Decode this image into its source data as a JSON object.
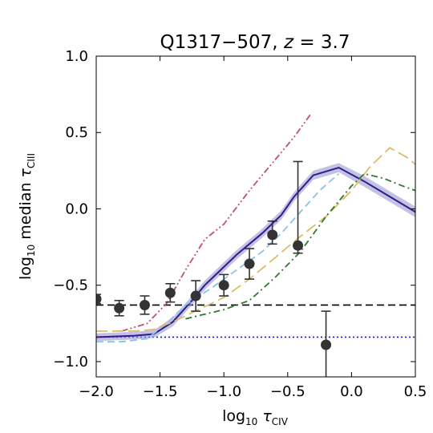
{
  "chart_data": {
    "type": "line",
    "title_main": "Q1317−507, ",
    "title_var": "z",
    "title_rest": " = 3.7",
    "xlabel": {
      "prefix": "log",
      "sub": "10",
      "sym": " τ",
      "ion": "CIV"
    },
    "ylabel": {
      "prefix": "log",
      "sub": "10",
      "mid": " median ",
      "sym": "τ",
      "ion": "CIII"
    },
    "xlim": [
      -2.0,
      0.5
    ],
    "ylim": [
      -1.1,
      1.0
    ],
    "xticks": [
      -2.0,
      -1.5,
      -1.0,
      -0.5,
      0.0,
      0.5
    ],
    "xtick_labels": [
      "−2.0",
      "−1.5",
      "−1.0",
      "−0.5",
      "0.0",
      "0.5"
    ],
    "yticks": [
      1.0,
      0.5,
      0.0,
      -0.5,
      -1.0
    ],
    "ytick_labels": [
      "1.0",
      "0.5",
      "0.0",
      "−0.5",
      "−1.0"
    ],
    "grid": false,
    "observed": {
      "x": [
        -2.0,
        -1.82,
        -1.62,
        -1.42,
        -1.22,
        -1.0,
        -0.8,
        -0.62,
        -0.42,
        -0.2
      ],
      "y": [
        -0.59,
        -0.65,
        -0.63,
        -0.55,
        -0.57,
        -0.5,
        -0.36,
        -0.17,
        -0.24,
        -0.89
      ],
      "yerr_low": [
        0.03,
        0.05,
        0.06,
        0.06,
        0.1,
        0.07,
        0.1,
        0.06,
        0.05,
        0.22
      ],
      "yerr_high": [
        0.03,
        0.05,
        0.06,
        0.06,
        0.1,
        0.07,
        0.1,
        0.09,
        0.55,
        0.22
      ],
      "color": "#333333"
    },
    "horizontal_lines": [
      {
        "y": -0.63,
        "style": "dashed",
        "color": "#000000"
      },
      {
        "y": -0.84,
        "style": "dotted",
        "color": "#1a1aa0"
      }
    ],
    "series": [
      {
        "style": "solid",
        "color": "#2b1e8f",
        "band_color": "#9c98cf",
        "x": [
          -2.0,
          -1.7,
          -1.55,
          -1.4,
          -1.25,
          -1.15,
          -1.05,
          -0.9,
          -0.7,
          -0.55,
          -0.45,
          -0.3,
          -0.1,
          0.1,
          0.3,
          0.5
        ],
        "y": [
          -0.84,
          -0.83,
          -0.82,
          -0.74,
          -0.6,
          -0.5,
          -0.42,
          -0.3,
          -0.16,
          -0.04,
          0.08,
          0.22,
          0.27,
          0.18,
          0.08,
          -0.02
        ],
        "band": [
          0.025,
          0.025,
          0.025,
          0.03,
          0.03,
          0.03,
          0.03,
          0.03,
          0.03,
          0.03,
          0.03,
          0.03,
          0.03,
          0.035,
          0.035,
          0.035
        ]
      },
      {
        "style": "dashed",
        "color": "#87c4e8",
        "x": [
          -2.0,
          -1.8,
          -1.6,
          -1.45,
          -1.3,
          -1.1,
          -0.9,
          -0.7,
          -0.55,
          -0.4,
          -0.25,
          -0.1
        ],
        "y": [
          -0.87,
          -0.87,
          -0.85,
          -0.75,
          -0.63,
          -0.52,
          -0.4,
          -0.28,
          -0.16,
          -0.02,
          0.12,
          0.23
        ]
      },
      {
        "style": "dashdotdot",
        "color": "#c0507a",
        "x": [
          -1.8,
          -1.6,
          -1.45,
          -1.3,
          -1.15,
          -1.0,
          -0.8,
          -0.6,
          -0.45,
          -0.32
        ],
        "y": [
          -0.8,
          -0.75,
          -0.62,
          -0.4,
          -0.2,
          -0.1,
          0.12,
          0.32,
          0.47,
          0.62
        ]
      },
      {
        "style": "longdash",
        "color": "#dcbc6a",
        "x": [
          -2.0,
          -1.7,
          -1.55,
          -1.4,
          -1.2,
          -1.0,
          -0.8,
          -0.6,
          -0.4,
          -0.2,
          0.0,
          0.15,
          0.3,
          0.45,
          0.5
        ],
        "y": [
          -0.8,
          -0.8,
          -0.79,
          -0.74,
          -0.66,
          -0.58,
          -0.46,
          -0.32,
          -0.18,
          -0.05,
          0.12,
          0.28,
          0.4,
          0.33,
          0.29
        ]
      },
      {
        "style": "dashdot",
        "color": "#2f7a2a",
        "x": [
          -1.3,
          -1.0,
          -0.8,
          -0.6,
          -0.4,
          -0.2,
          0.0,
          0.1,
          0.25,
          0.4,
          0.5
        ],
        "y": [
          -0.72,
          -0.66,
          -0.6,
          -0.45,
          -0.28,
          -0.05,
          0.15,
          0.23,
          0.2,
          0.15,
          0.12
        ]
      }
    ]
  }
}
